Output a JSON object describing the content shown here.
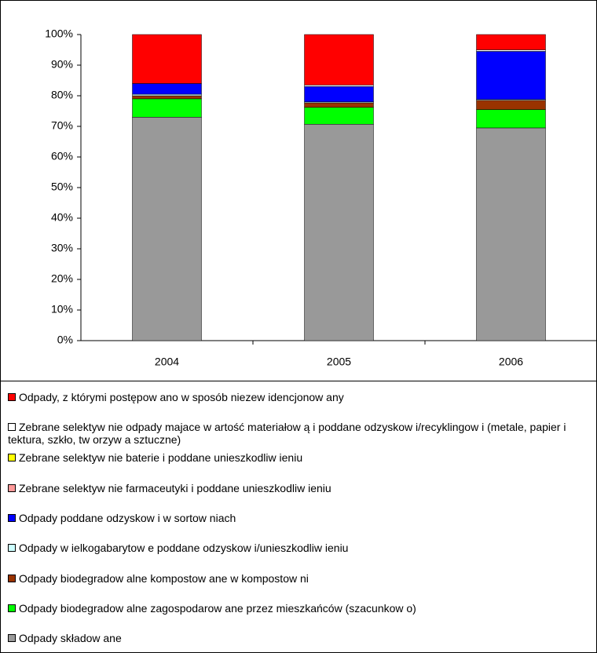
{
  "chart_data": {
    "type": "stacked_bar",
    "categories": [
      "2004",
      "2005",
      "2006"
    ],
    "series": [
      {
        "name": "Odpady, z którymi postępow ano w  sposób niezew idencjonow any",
        "color": "#ff0000",
        "values": [
          16,
          16.5,
          5
        ]
      },
      {
        "name": "Zebrane selektyw nie odpady majace w artość materiałow ą i poddane odzyskow i/recyklingow i (metale, papier i tektura, szkło, tw orzyw a sztuczne)",
        "color": "#ffffff",
        "values": [
          0,
          0.5,
          0.5
        ]
      },
      {
        "name": "Zebrane selektyw nie baterie i poddane unieszkodliw ieniu",
        "color": "#ffff00",
        "values": [
          0,
          0,
          0
        ]
      },
      {
        "name": "Zebrane selektyw nie farmaceutyki i poddane unieszkodliw ieniu",
        "color": "#ff9999",
        "values": [
          0,
          0,
          0
        ]
      },
      {
        "name": "Odpady poddane odzyskow i w  sortow niach",
        "color": "#0000ff",
        "values": [
          3.5,
          5,
          15.7
        ]
      },
      {
        "name": "Odpady w ielkogabarytow e poddane odzyskow i/unieszkodliw ieniu",
        "color": "#ccffff",
        "values": [
          0.5,
          0.3,
          0.3
        ]
      },
      {
        "name": "Odpady biodegradow alne kompostow ane w  kompostow ni",
        "color": "#993300",
        "values": [
          1,
          1.5,
          3
        ]
      },
      {
        "name": "Odpady biodegradow alne zagospodarow ane przez mieszkańców  (szacunkow o)",
        "color": "#00ff00",
        "values": [
          6,
          5.5,
          6
        ]
      },
      {
        "name": "Odpady składow ane",
        "color": "#999999",
        "values": [
          73,
          70.7,
          69.5
        ]
      }
    ],
    "ylim": [
      0,
      100
    ],
    "yticks": [
      {
        "value": 0,
        "label": "0%"
      },
      {
        "value": 10,
        "label": "10%"
      },
      {
        "value": 20,
        "label": "20%"
      },
      {
        "value": 30,
        "label": "30%"
      },
      {
        "value": 40,
        "label": "40%"
      },
      {
        "value": 50,
        "label": "50%"
      },
      {
        "value": 60,
        "label": "60%"
      },
      {
        "value": 70,
        "label": "70%"
      },
      {
        "value": 80,
        "label": "80%"
      },
      {
        "value": 90,
        "label": "90%"
      },
      {
        "value": 100,
        "label": "100%"
      }
    ],
    "legend": "bottom"
  }
}
